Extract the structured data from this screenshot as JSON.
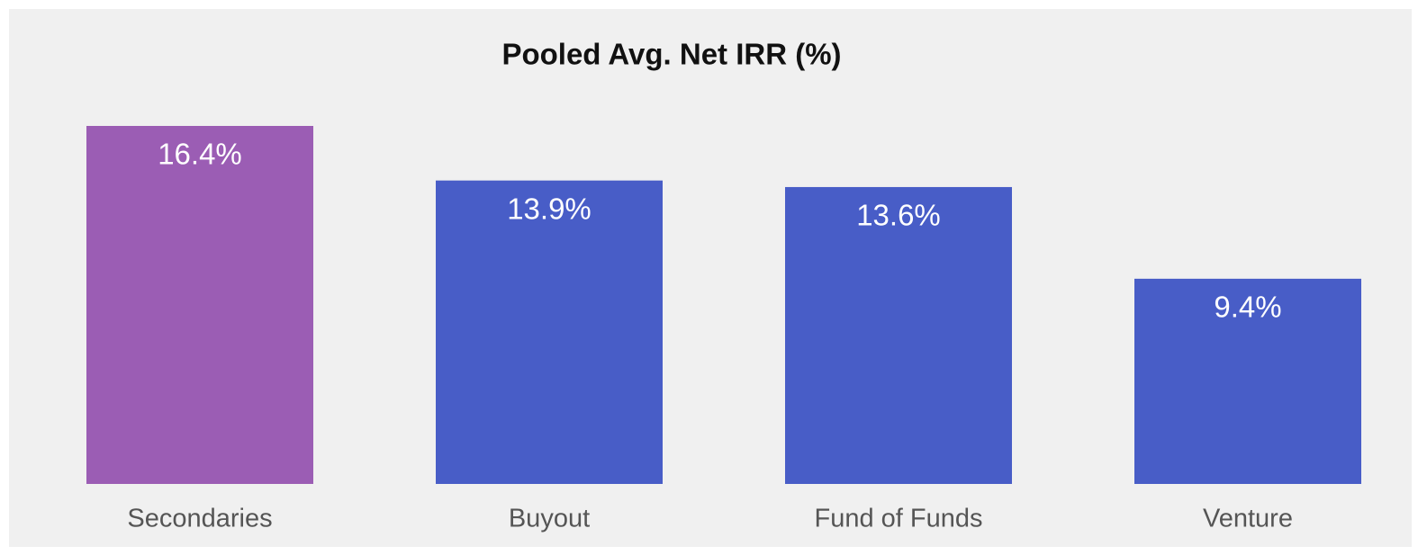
{
  "chart_data": {
    "type": "bar",
    "title": "Pooled Avg. Net IRR (%)",
    "categories": [
      "Secondaries",
      "Buyout",
      "Fund of Funds",
      "Venture"
    ],
    "values": [
      16.4,
      13.9,
      13.6,
      9.4
    ],
    "value_labels": [
      "16.4%",
      "13.9%",
      "13.6%",
      "9.4%"
    ],
    "colors": [
      "#9b5db4",
      "#485dc7",
      "#485dc7",
      "#485dc7"
    ]
  }
}
